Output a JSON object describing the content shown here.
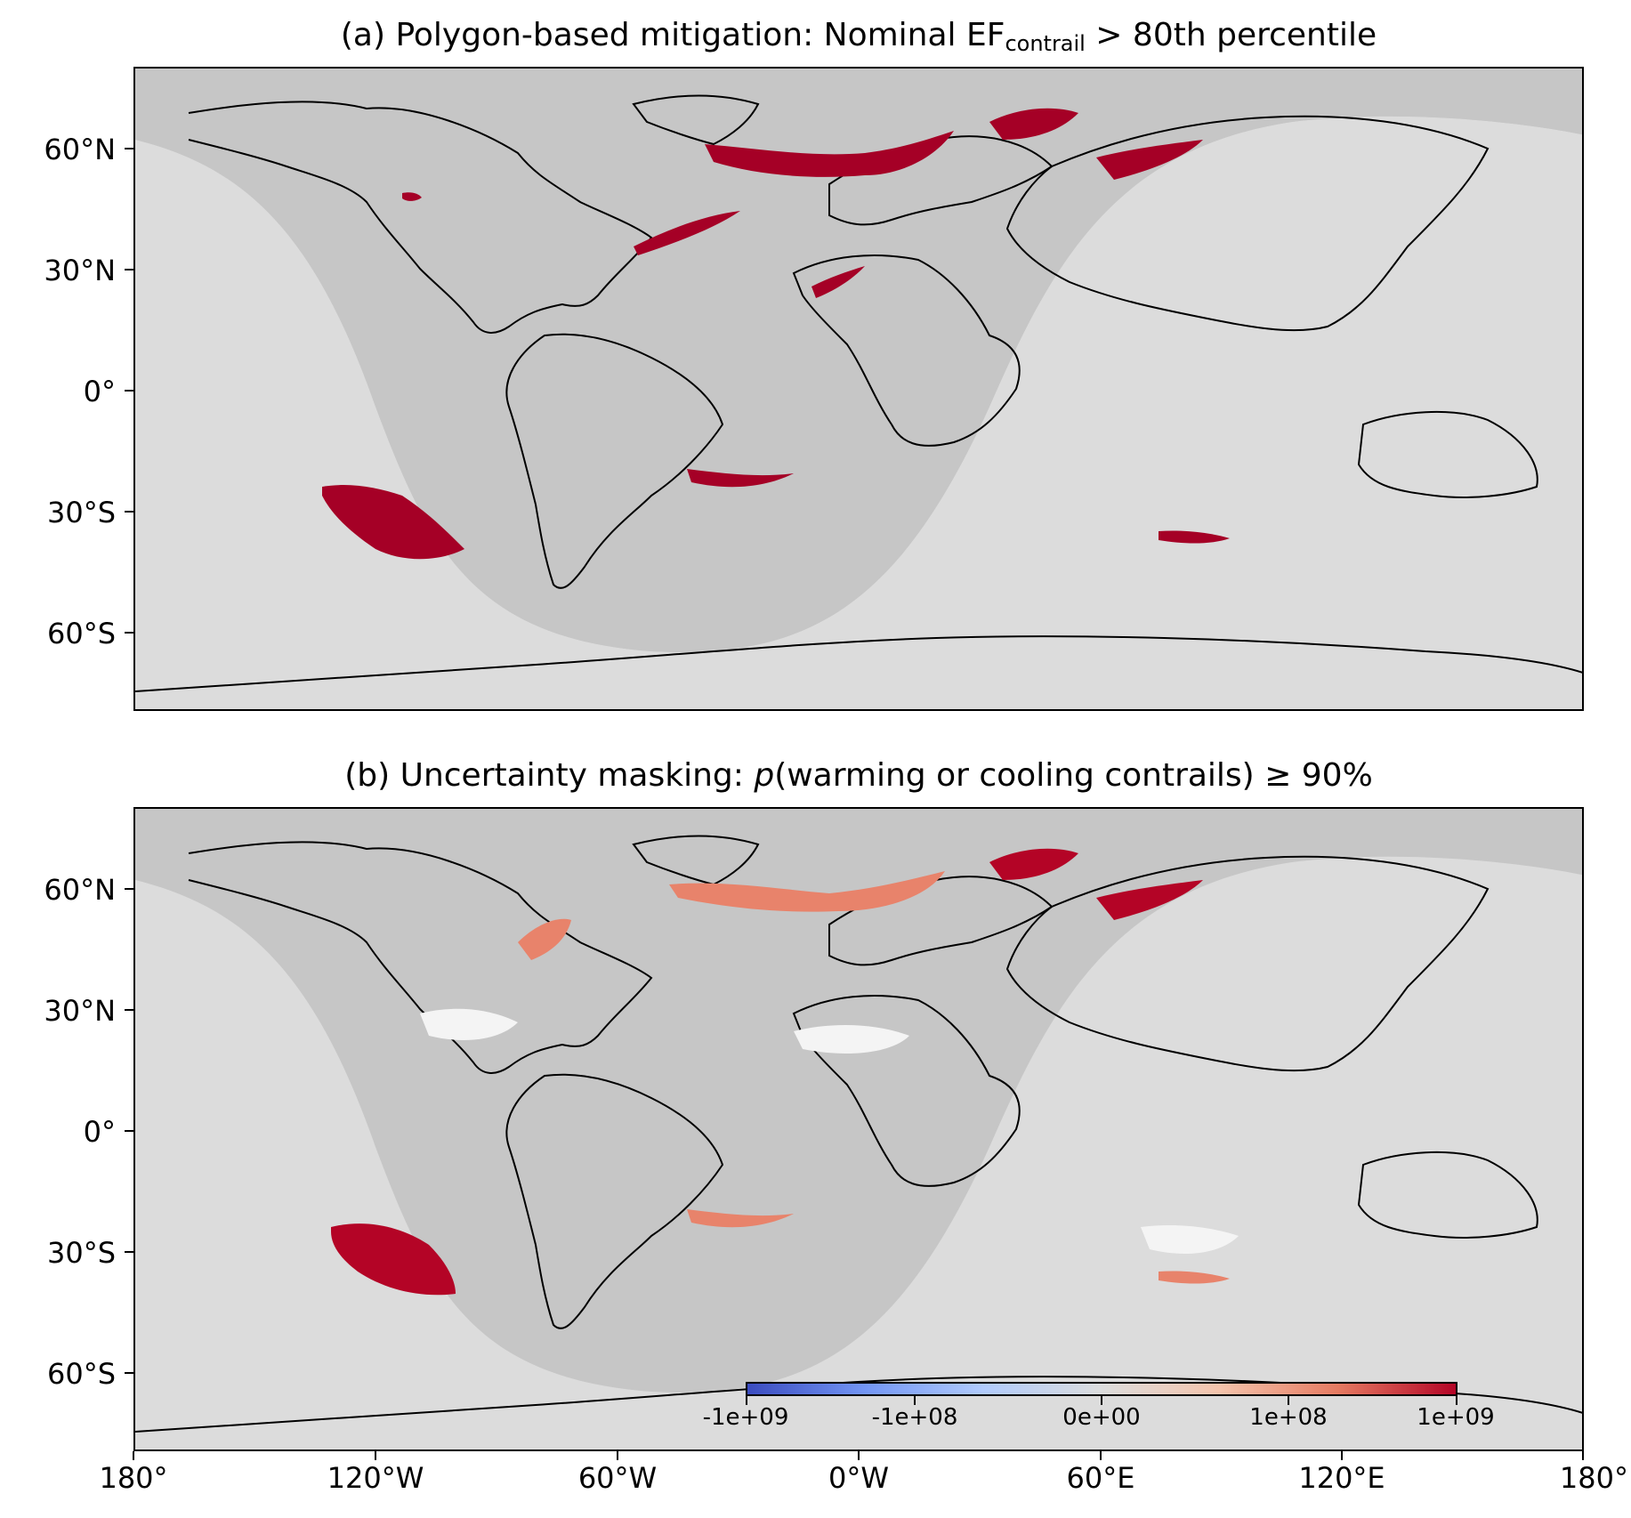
{
  "panels": [
    {
      "title_prefix": "(a) Polygon-based mitigation: Nominal EF",
      "title_sub": "contrail",
      "title_suffix": " > 80th percentile"
    },
    {
      "title_prefix": "(b) Uncertainty masking: ",
      "title_italic": "p",
      "title_suffix": "(warming or cooling contrails) ≥ 90%"
    }
  ],
  "lat_ticks": [
    "60°N",
    "30°N",
    "0°",
    "30°S",
    "60°S"
  ],
  "lon_ticks": [
    "180°",
    "120°W",
    "60°W",
    "0°W",
    "60°E",
    "120°E",
    "180°"
  ],
  "colorbar": {
    "ticks": [
      "-1e+09",
      "-1e+08",
      "0e+00",
      "1e+08",
      "1e+09"
    ],
    "colors": [
      "#3b4cc0",
      "#7396f5",
      "#b1cbfc",
      "#dcdddd",
      "#f5c4ac",
      "#e67b62",
      "#b40426"
    ]
  },
  "colors": {
    "night": "#c6c6c6",
    "day": "#dcdcdc",
    "mitigation": "#a50026",
    "warming_dark": "#b40426",
    "warming_light": "#e8836b",
    "uncertain": "#f4f4f4"
  }
}
